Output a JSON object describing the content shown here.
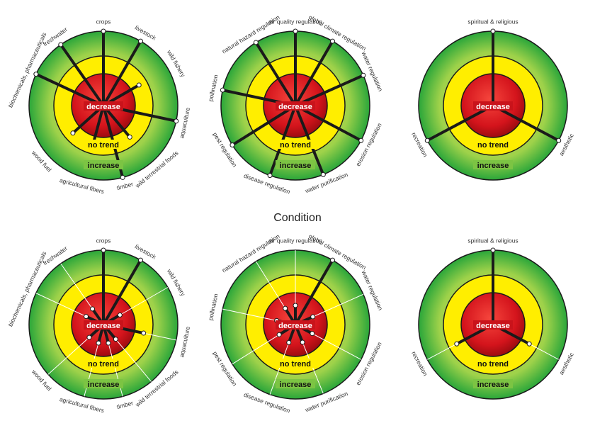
{
  "section_title": "Condition",
  "ring_labels": {
    "inner": "decrease",
    "middle": "no trend",
    "outer": "increase"
  },
  "colors": {
    "inner_red": "#d4141c",
    "inner_red_highlight": "#f5453c",
    "middle_yellow": "#ffee00",
    "outer_green": "#2aa63a",
    "outer_green_light": "#9fd24a",
    "spoke_dark": "#1a1a1a",
    "spoke_light": "#ffffff"
  },
  "charts": [
    {
      "id": "provisioning-trend",
      "services": [
        {
          "label": "crops",
          "level": "increase"
        },
        {
          "label": "livestock",
          "level": "increase"
        },
        {
          "label": "wild fishery",
          "level": "no trend"
        },
        {
          "label": "aquaculture",
          "level": "increase"
        },
        {
          "label": "wild terrestrial foods",
          "level": "no trend"
        },
        {
          "label": "timber",
          "level": "increase"
        },
        {
          "label": "agricultural fibers",
          "level": "no trend"
        },
        {
          "label": "wood fuel",
          "level": "no trend"
        },
        {
          "label": "biochemicals, pharmaceuticals",
          "level": "increase"
        },
        {
          "label": "freshwater",
          "level": "increase"
        }
      ]
    },
    {
      "id": "regulating-trend",
      "services": [
        {
          "label": "air quality regulation",
          "level": "increase"
        },
        {
          "label": "global climate regulation",
          "level": "increase"
        },
        {
          "label": "water regulation",
          "level": "increase"
        },
        {
          "label": "erosion regulation",
          "level": "increase"
        },
        {
          "label": "water purification",
          "level": "increase"
        },
        {
          "label": "disease regulation",
          "level": "increase"
        },
        {
          "label": "pest regulation",
          "level": "increase"
        },
        {
          "label": "pollination",
          "level": "increase"
        },
        {
          "label": "natural hazard regulation",
          "level": "increase"
        }
      ]
    },
    {
      "id": "cultural-trend",
      "services": [
        {
          "label": "spiritual & religious",
          "level": "increase"
        },
        {
          "label": "aesthetic",
          "level": "increase"
        },
        {
          "label": "recreation",
          "level": "increase"
        }
      ]
    },
    {
      "id": "provisioning-condition",
      "services": [
        {
          "label": "crops",
          "level": "increase"
        },
        {
          "label": "livestock",
          "level": "increase"
        },
        {
          "label": "wild fishery",
          "level": "decrease"
        },
        {
          "label": "aquaculture",
          "level": "no trend"
        },
        {
          "label": "wild terrestrial foods",
          "level": "decrease"
        },
        {
          "label": "timber",
          "level": "decrease"
        },
        {
          "label": "agricultural fibers",
          "level": "decrease"
        },
        {
          "label": "wood fuel",
          "level": "decrease"
        },
        {
          "label": "biochemicals, pharmaceuticals",
          "level": "decrease"
        },
        {
          "label": "freshwater",
          "level": "decrease"
        }
      ]
    },
    {
      "id": "regulating-condition",
      "services": [
        {
          "label": "air quality regulation",
          "level": "decrease"
        },
        {
          "label": "global climate regulation",
          "level": "increase"
        },
        {
          "label": "water regulation",
          "level": "decrease"
        },
        {
          "label": "erosion regulation",
          "level": "decrease"
        },
        {
          "label": "water purification",
          "level": "decrease"
        },
        {
          "label": "disease regulation",
          "level": "decrease"
        },
        {
          "label": "pest regulation",
          "level": "decrease"
        },
        {
          "label": "pollination",
          "level": "decrease"
        },
        {
          "label": "natural hazard regulation",
          "level": "decrease"
        }
      ]
    },
    {
      "id": "cultural-condition",
      "services": [
        {
          "label": "spiritual & religious",
          "level": "increase"
        },
        {
          "label": "aesthetic",
          "level": "no trend"
        },
        {
          "label": "recreation",
          "level": "no trend"
        }
      ]
    }
  ]
}
